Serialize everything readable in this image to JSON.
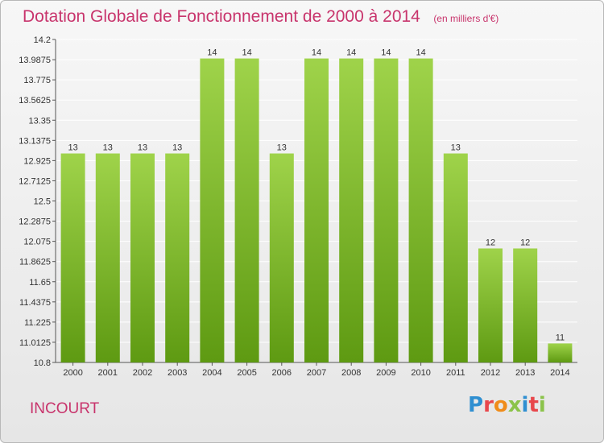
{
  "header": {
    "title": "Dotation Globale de Fonctionnement de 2000 à 2014",
    "subtitle": "(en milliers d'€)"
  },
  "footer": {
    "commune": "INCOURT",
    "logo_text": "Proxiti"
  },
  "colors": {
    "title": "#c8346c",
    "bar_top": "#9fd34a",
    "bar_bottom": "#5e9a12",
    "logo": [
      "#2f8fd1",
      "#e8474c",
      "#f08c1a",
      "#8bc34a",
      "#2f8fd1",
      "#e8474c",
      "#8bc34a"
    ]
  },
  "chart_data": {
    "type": "bar",
    "title": "Dotation Globale de Fonctionnement de 2000 à 2014",
    "subtitle": "(en milliers d'€)",
    "categories": [
      "2000",
      "2001",
      "2002",
      "2003",
      "2004",
      "2005",
      "2006",
      "2007",
      "2008",
      "2009",
      "2010",
      "2011",
      "2012",
      "2013",
      "2014"
    ],
    "values": [
      13,
      13,
      13,
      13,
      14,
      14,
      13,
      14,
      14,
      14,
      14,
      13,
      12,
      12,
      11
    ],
    "ylim": [
      10.8,
      14.2
    ],
    "yticks": [
      "14.2",
      "13.9875",
      "13.775",
      "13.5625",
      "13.35",
      "13.1375",
      "12.925",
      "12.7125",
      "12.5",
      "12.2875",
      "12.075",
      "11.8625",
      "11.65",
      "11.4375",
      "11.225",
      "11.0125",
      "10.8"
    ],
    "grid": true,
    "legend": "none"
  }
}
